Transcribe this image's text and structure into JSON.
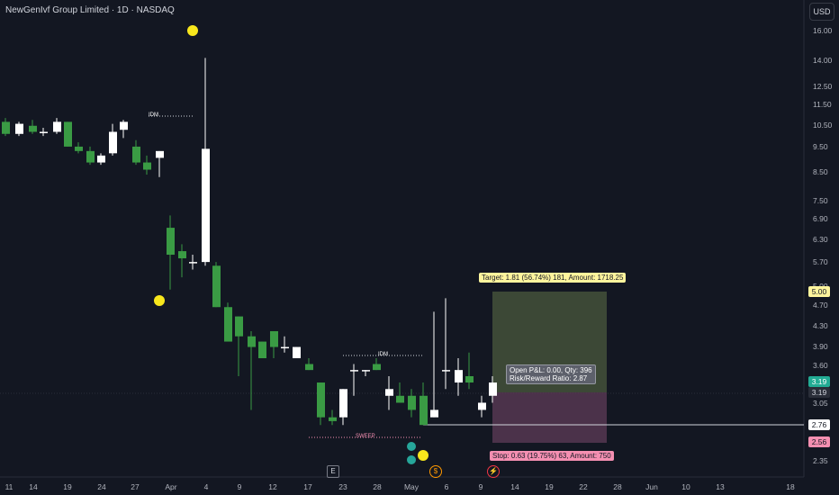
{
  "header": {
    "title": "NewGenIvf Group Limited · 1D · NASDAQ",
    "currency_button": "USD"
  },
  "price_axis": [
    "16.00",
    "14.00",
    "12.50",
    "11.50",
    "10.50",
    "9.50",
    "8.50",
    "7.50",
    "6.90",
    "6.30",
    "5.70",
    "5.00",
    "4.70",
    "4.30",
    "3.90",
    "3.60",
    "3.19",
    "3.05",
    "2.76",
    "2.56",
    "2.35"
  ],
  "time_axis": [
    "11",
    "14",
    "19",
    "24",
    "27",
    "Apr",
    "4",
    "9",
    "12",
    "17",
    "23",
    "28",
    "May",
    "6",
    "9",
    "14",
    "19",
    "22",
    "28",
    "Jun",
    "10",
    "13",
    "18"
  ],
  "price_tags": {
    "target": {
      "text": "5.00",
      "color": "#fff59d",
      "text_color": "#131722"
    },
    "last_close": {
      "text": "3.19",
      "color": "#22ab94",
      "text_color": "#ffffff"
    },
    "last_close_dup": {
      "text": "3.19",
      "color": "#2a2e39",
      "text_color": "#d1d4dc"
    },
    "level": {
      "text": "2.76",
      "color": "#ffffff",
      "text_color": "#131722"
    },
    "stop": {
      "text": "2.56",
      "color": "#f48fb1",
      "text_color": "#131722"
    }
  },
  "position_tool": {
    "target_label": "Target: 1.81 (56.74%) 181, Amount: 1718.25",
    "stop_label": "Stop: 0.63 (19.75%) 63, Amount: 750",
    "pnl_line1": "Open P&L: 0.00, Qty: 396",
    "pnl_line2": "Risk/Reward Ratio: 2.87"
  },
  "annotations": {
    "idm_1": "IDM",
    "idm_2": "IDM",
    "sweep": "SWEEP"
  },
  "event_markers": {
    "earnings": "E",
    "dividend": "$",
    "split": "⚡"
  },
  "colors": {
    "up": "#ffffff",
    "down": "#3a9b44",
    "background": "#131722",
    "signal_dot": "#f8e71c",
    "teal_dot": "#26a69a"
  },
  "chart_data": {
    "type": "candlestick",
    "x": [
      "Mar 11",
      "Mar 12",
      "Mar 13",
      "Mar 14",
      "Mar 15",
      "Mar 18",
      "Mar 19",
      "Mar 20",
      "Mar 21",
      "Mar 22",
      "Mar 25",
      "Mar 26",
      "Mar 27",
      "Mar 28",
      "Apr 1",
      "Apr 2",
      "Apr 3",
      "Apr 4",
      "Apr 5",
      "Apr 8",
      "Apr 9",
      "Apr 10",
      "Apr 11",
      "Apr 12",
      "Apr 15",
      "Apr 16",
      "Apr 17",
      "Apr 18",
      "Apr 19",
      "Apr 22",
      "Apr 23",
      "Apr 24",
      "Apr 25",
      "Apr 26",
      "Apr 29",
      "Apr 30",
      "May 1",
      "May 2",
      "May 3",
      "May 6",
      "May 7",
      "May 8",
      "May 9",
      "May 10"
    ],
    "ohlc": [
      [
        11.2,
        11.4,
        10.5,
        10.6
      ],
      [
        10.6,
        11.2,
        10.5,
        11.1
      ],
      [
        11.0,
        11.3,
        10.6,
        10.7
      ],
      [
        10.7,
        10.9,
        10.5,
        10.7
      ],
      [
        10.7,
        11.4,
        10.6,
        11.2
      ],
      [
        11.2,
        11.2,
        10.0,
        10.0
      ],
      [
        10.0,
        10.2,
        9.7,
        9.8
      ],
      [
        9.8,
        10.0,
        9.2,
        9.3
      ],
      [
        9.3,
        9.7,
        9.2,
        9.6
      ],
      [
        9.7,
        11.1,
        9.6,
        10.7
      ],
      [
        10.8,
        11.3,
        10.4,
        11.2
      ],
      [
        10.0,
        10.3,
        9.2,
        9.3
      ],
      [
        9.3,
        9.6,
        8.8,
        9.0
      ],
      [
        9.5,
        9.8,
        8.7,
        9.8
      ],
      [
        6.9,
        7.3,
        5.2,
        6.1
      ],
      [
        6.2,
        6.4,
        5.5,
        6.0
      ],
      [
        5.9,
        6.1,
        5.7,
        5.9
      ],
      [
        5.9,
        15.0,
        5.8,
        9.9
      ],
      [
        5.8,
        5.9,
        4.8,
        4.8
      ],
      [
        4.8,
        4.9,
        4.1,
        4.1
      ],
      [
        4.6,
        4.6,
        3.5,
        4.2
      ],
      [
        4.2,
        4.3,
        3.0,
        4.0
      ],
      [
        4.1,
        4.1,
        3.8,
        3.8
      ],
      [
        4.3,
        4.3,
        3.8,
        4.0
      ],
      [
        4.0,
        4.2,
        3.9,
        4.0
      ],
      [
        3.8,
        4.0,
        3.9,
        4.0
      ],
      [
        3.7,
        3.8,
        3.6,
        3.6
      ],
      [
        3.4,
        3.4,
        2.8,
        2.9
      ],
      [
        2.9,
        3.0,
        2.8,
        2.85
      ],
      [
        2.9,
        3.3,
        2.8,
        3.3
      ],
      [
        3.6,
        3.7,
        3.2,
        3.6
      ],
      [
        3.6,
        3.6,
        3.5,
        3.6
      ],
      [
        3.7,
        3.8,
        3.6,
        3.6
      ],
      [
        3.2,
        3.5,
        3.0,
        3.3
      ],
      [
        3.2,
        3.4,
        3.1,
        3.1
      ],
      [
        3.2,
        3.3,
        2.9,
        3.0
      ],
      [
        3.2,
        3.4,
        2.8,
        2.8
      ],
      [
        2.9,
        4.7,
        2.9,
        3.0
      ],
      [
        3.6,
        5.0,
        3.3,
        3.6
      ],
      [
        3.4,
        3.8,
        3.2,
        3.6
      ],
      [
        3.5,
        3.9,
        3.3,
        3.4
      ],
      [
        3.0,
        3.2,
        2.9,
        3.1
      ],
      [
        3.2,
        3.5,
        3.1,
        3.4
      ],
      [
        3.2,
        3.5,
        3.1,
        3.2
      ]
    ],
    "ylim": [
      2.3,
      17.0
    ],
    "grid": false
  }
}
